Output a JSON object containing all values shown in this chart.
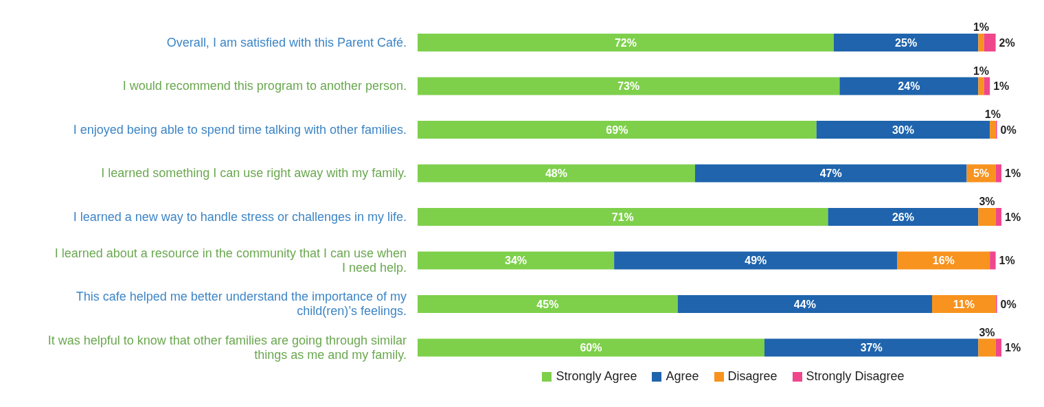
{
  "chart_data": {
    "type": "bar",
    "orientation": "horizontal",
    "stacked": true,
    "legend": "bottom",
    "grid": false,
    "categories": [
      "Overall, I am satisfied with this Parent Café.",
      "I would recommend this program to another person.",
      "I enjoyed being able to spend time talking with other families.",
      "I learned something I can use right away with my family.",
      "I learned a new way to handle stress or challenges in my life.",
      "I learned about a resource in the community that I can use when\nI need help.",
      "This cafe helped me better understand the importance of my\nchild(ren)’s feelings.",
      "It was helpful to know that other families are going through similar\nthings as me and my family."
    ],
    "series": [
      {
        "name": "Strongly Agree",
        "color": "#7ed04b",
        "values": [
          72,
          73,
          69,
          48,
          71,
          34,
          45,
          60
        ],
        "value_labels": [
          "72%",
          "73%",
          "69%",
          "48%",
          "71%",
          "34%",
          "45%",
          "60%"
        ]
      },
      {
        "name": "Agree",
        "color": "#1f64ad",
        "values": [
          25,
          24,
          30,
          47,
          26,
          49,
          44,
          37
        ],
        "value_labels": [
          "25%",
          "24%",
          "30%",
          "47%",
          "26%",
          "49%",
          "44%",
          "37%"
        ]
      },
      {
        "name": "Disagree",
        "color": "#f7931e",
        "values": [
          1,
          1,
          1,
          5,
          3,
          16,
          11,
          3
        ],
        "value_labels": [
          "1%",
          "1%",
          "1%",
          "5%",
          "3%",
          "16%",
          "11%",
          "3%"
        ]
      },
      {
        "name": "Strongly Disagree",
        "color": "#f0468c",
        "values": [
          2,
          1,
          0,
          1,
          1,
          1,
          0,
          1
        ],
        "value_labels": [
          "2%",
          "1%",
          "0%",
          "1%",
          "1%",
          "1%",
          "0%",
          "1%"
        ]
      }
    ]
  }
}
